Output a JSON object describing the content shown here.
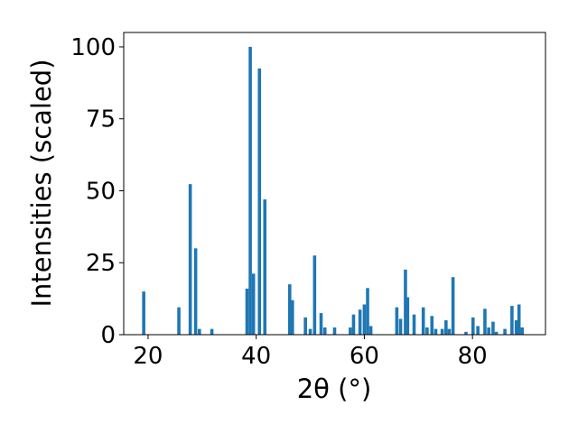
{
  "chart_data": {
    "type": "bar",
    "xlabel": "2θ (°)",
    "ylabel": "Intensities (scaled)",
    "xlim": [
      15.5,
      93.5
    ],
    "ylim": [
      0,
      105
    ],
    "xticks": [
      20,
      40,
      60,
      80
    ],
    "yticks": [
      0,
      25,
      50,
      75,
      100
    ],
    "bar_color": "#1f77b4",
    "bar_width_units": 0.6,
    "grid": false,
    "legend": "none",
    "points": [
      {
        "x": 19.2,
        "y": 15.0
      },
      {
        "x": 25.7,
        "y": 9.5
      },
      {
        "x": 27.8,
        "y": 52.3
      },
      {
        "x": 28.8,
        "y": 30.0
      },
      {
        "x": 29.5,
        "y": 2.0
      },
      {
        "x": 31.8,
        "y": 2.0
      },
      {
        "x": 38.3,
        "y": 16.0
      },
      {
        "x": 38.9,
        "y": 100.0
      },
      {
        "x": 39.5,
        "y": 21.2
      },
      {
        "x": 40.6,
        "y": 92.5
      },
      {
        "x": 41.6,
        "y": 47.0
      },
      {
        "x": 46.2,
        "y": 17.5
      },
      {
        "x": 46.7,
        "y": 12.0
      },
      {
        "x": 49.1,
        "y": 6.0
      },
      {
        "x": 50.0,
        "y": 2.0
      },
      {
        "x": 50.8,
        "y": 27.5
      },
      {
        "x": 52.0,
        "y": 7.5
      },
      {
        "x": 52.7,
        "y": 2.5
      },
      {
        "x": 54.5,
        "y": 2.5
      },
      {
        "x": 57.4,
        "y": 2.5
      },
      {
        "x": 58.0,
        "y": 7.0
      },
      {
        "x": 59.2,
        "y": 8.7
      },
      {
        "x": 60.0,
        "y": 10.5
      },
      {
        "x": 60.6,
        "y": 16.2
      },
      {
        "x": 61.2,
        "y": 3.0
      },
      {
        "x": 66.0,
        "y": 9.5
      },
      {
        "x": 66.7,
        "y": 5.5
      },
      {
        "x": 67.6,
        "y": 22.6
      },
      {
        "x": 68.0,
        "y": 13.0
      },
      {
        "x": 69.2,
        "y": 7.0
      },
      {
        "x": 70.9,
        "y": 9.5
      },
      {
        "x": 71.6,
        "y": 2.5
      },
      {
        "x": 72.5,
        "y": 6.5
      },
      {
        "x": 73.2,
        "y": 2.0
      },
      {
        "x": 74.4,
        "y": 2.0
      },
      {
        "x": 75.1,
        "y": 5.0
      },
      {
        "x": 75.7,
        "y": 2.0
      },
      {
        "x": 76.4,
        "y": 20.0
      },
      {
        "x": 78.8,
        "y": 1.0
      },
      {
        "x": 80.1,
        "y": 6.0
      },
      {
        "x": 81.0,
        "y": 3.0
      },
      {
        "x": 82.3,
        "y": 9.0
      },
      {
        "x": 83.0,
        "y": 2.5
      },
      {
        "x": 83.8,
        "y": 4.5
      },
      {
        "x": 84.4,
        "y": 1.0
      },
      {
        "x": 86.0,
        "y": 2.0
      },
      {
        "x": 87.3,
        "y": 10.0
      },
      {
        "x": 88.1,
        "y": 5.0
      },
      {
        "x": 88.6,
        "y": 10.5
      },
      {
        "x": 89.2,
        "y": 2.5
      }
    ]
  }
}
